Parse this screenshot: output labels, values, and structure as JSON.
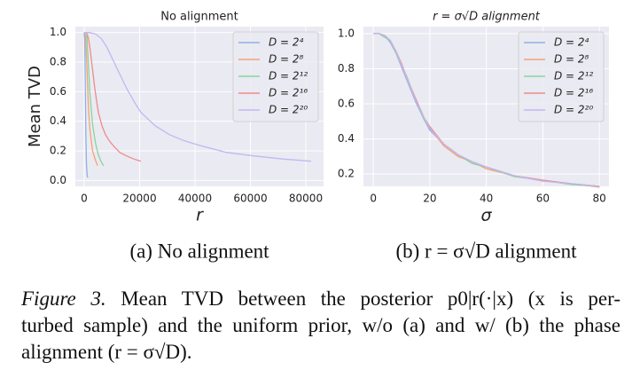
{
  "chart_data": [
    {
      "type": "line",
      "title": "No alignment",
      "xlabel": "r",
      "ylabel": "Mean TVD",
      "caption": "(a) No alignment",
      "xlim": [
        -3200,
        86400
      ],
      "ylim": [
        -0.04,
        1.04
      ],
      "xticks": [
        0,
        20000,
        40000,
        60000,
        80000
      ],
      "yticks": [
        {
          "value": 0,
          "label": "0.0"
        },
        0.2,
        0.4,
        0.6,
        0.8,
        {
          "value": 1,
          "label": "1.0"
        }
      ],
      "grid": true,
      "legend": "upper right",
      "series": [
        {
          "name": "D = 2⁴",
          "color": "#8fb0e6",
          "x": [
            0,
            200,
            400,
            600,
            800,
            1000,
            1200
          ],
          "values": [
            1.0,
            0.95,
            0.6,
            0.3,
            0.12,
            0.05,
            0.02
          ]
        },
        {
          "name": "D = 2⁸",
          "color": "#f5a274",
          "x": [
            0,
            500,
            1000,
            1500,
            2000,
            3000,
            4000,
            4800
          ],
          "values": [
            1.0,
            0.98,
            0.75,
            0.5,
            0.35,
            0.2,
            0.14,
            0.1
          ]
        },
        {
          "name": "D = 2¹²",
          "color": "#86d69a",
          "x": [
            0,
            1000,
            2000,
            3000,
            4000,
            5000,
            6000,
            7000
          ],
          "values": [
            1.0,
            0.97,
            0.6,
            0.38,
            0.26,
            0.18,
            0.13,
            0.1
          ]
        },
        {
          "name": "D = 2¹⁶",
          "color": "#f08a8a",
          "x": [
            0,
            512,
            1024,
            1536,
            2048,
            2560,
            3072,
            3840,
            4608,
            5120,
            6400,
            7680,
            8960,
            10240,
            12800,
            15360,
            17920,
            20480
          ],
          "values": [
            1.0,
            1.0,
            0.99,
            0.96,
            0.9,
            0.82,
            0.74,
            0.62,
            0.52,
            0.46,
            0.37,
            0.31,
            0.27,
            0.24,
            0.19,
            0.165,
            0.145,
            0.13
          ]
        },
        {
          "name": "D = 2²⁰",
          "color": "#c4b6f2",
          "x": [
            0,
            2048,
            4096,
            6144,
            8192,
            10240,
            12288,
            15360,
            18432,
            20480,
            25600,
            30720,
            35840,
            40960,
            51200,
            61440,
            71680,
            81920
          ],
          "values": [
            1.0,
            1.0,
            0.99,
            0.96,
            0.9,
            0.82,
            0.74,
            0.62,
            0.52,
            0.46,
            0.37,
            0.31,
            0.27,
            0.24,
            0.19,
            0.165,
            0.145,
            0.13
          ]
        }
      ]
    },
    {
      "type": "line",
      "title": "r = σ√D alignment",
      "xlabel": "σ",
      "caption": "(b) r = σ√D alignment",
      "xlim": [
        -3.5,
        83.4
      ],
      "ylim": [
        0.13,
        1.04
      ],
      "xticks": [
        0,
        20,
        40,
        60,
        80
      ],
      "yticks": [
        0.2,
        0.4,
        0.6,
        0.8,
        {
          "value": 1,
          "label": "1.0"
        }
      ],
      "grid": true,
      "legend": "upper right",
      "x": [
        0,
        2,
        4,
        6,
        8,
        10,
        12,
        15,
        18,
        20,
        25,
        30,
        35,
        40,
        50,
        60,
        70,
        80
      ],
      "series": [
        {
          "name": "D = 2⁴",
          "color": "#8fb0e6",
          "values": [
            1.0,
            1.0,
            0.99,
            0.95,
            0.89,
            0.81,
            0.73,
            0.61,
            0.51,
            0.45,
            0.37,
            0.31,
            0.27,
            0.24,
            0.19,
            0.165,
            0.145,
            0.13
          ]
        },
        {
          "name": "D = 2⁸",
          "color": "#f5a274",
          "values": [
            1.0,
            1.0,
            0.99,
            0.96,
            0.9,
            0.82,
            0.74,
            0.62,
            0.52,
            0.46,
            0.36,
            0.3,
            0.27,
            0.23,
            0.19,
            0.16,
            0.145,
            0.125
          ]
        },
        {
          "name": "D = 2¹²",
          "color": "#86d69a",
          "values": [
            1.0,
            1.0,
            0.98,
            0.96,
            0.89,
            0.82,
            0.75,
            0.62,
            0.51,
            0.46,
            0.37,
            0.31,
            0.26,
            0.24,
            0.185,
            0.165,
            0.14,
            0.13
          ]
        },
        {
          "name": "D = 2¹⁶",
          "color": "#f08a8a",
          "values": [
            1.0,
            1.0,
            0.99,
            0.96,
            0.9,
            0.83,
            0.74,
            0.63,
            0.52,
            0.47,
            0.37,
            0.31,
            0.27,
            0.24,
            0.19,
            0.165,
            0.145,
            0.13
          ]
        },
        {
          "name": "D = 2²⁰",
          "color": "#c4b6f2",
          "values": [
            1.0,
            1.0,
            0.99,
            0.96,
            0.9,
            0.82,
            0.74,
            0.62,
            0.52,
            0.46,
            0.37,
            0.31,
            0.27,
            0.24,
            0.19,
            0.16,
            0.145,
            0.13
          ]
        }
      ]
    }
  ],
  "figure_caption": {
    "label": "Figure 3.",
    "lines": [
      "Mean TVD between the posterior p0|r(·|x) (x is per-",
      "turbed sample) and the uniform prior, w/o (a) and w/ (b) the phase",
      "alignment (r = σ√D)."
    ]
  }
}
